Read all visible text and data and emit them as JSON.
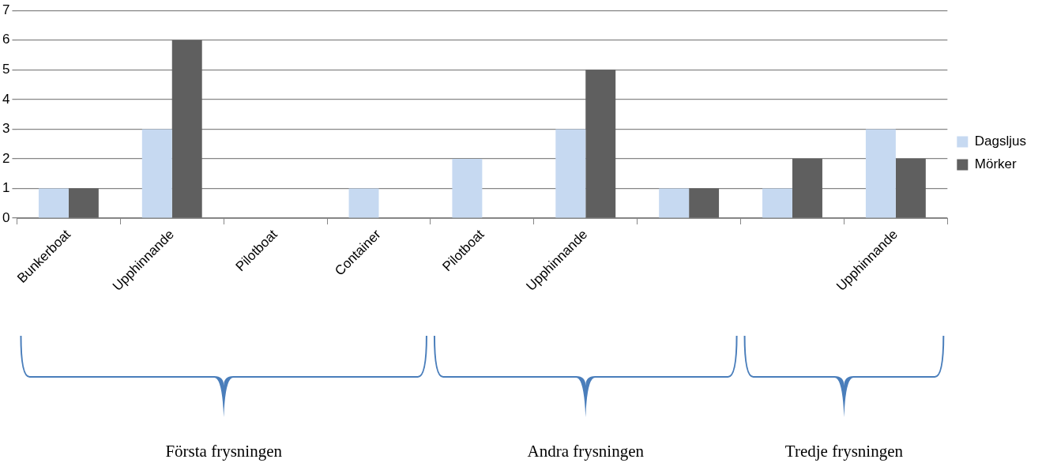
{
  "chart_data": {
    "type": "bar",
    "categories": [
      "Bunkerboat",
      "Upphinnande",
      "Pilotboat",
      "Container",
      "Pilotboat",
      "Upphinnande",
      null,
      null,
      "Upphinnande"
    ],
    "series": [
      {
        "name": "Dagsljus",
        "color": "#c6d9f1",
        "values": [
          1,
          3,
          0,
          1,
          2,
          3,
          1,
          1,
          3
        ]
      },
      {
        "name": "Mörker",
        "color": "#5f5f5f",
        "values": [
          1,
          6,
          0,
          0,
          0,
          5,
          1,
          2,
          2
        ]
      }
    ],
    "ylim": [
      0,
      7
    ],
    "yticks": [
      0,
      1,
      2,
      3,
      4,
      5,
      6,
      7
    ],
    "grid": "y",
    "legend": "right",
    "annotations": [
      "Första frysningen",
      "Andra frysningen",
      "Tredje frysningen"
    ]
  }
}
